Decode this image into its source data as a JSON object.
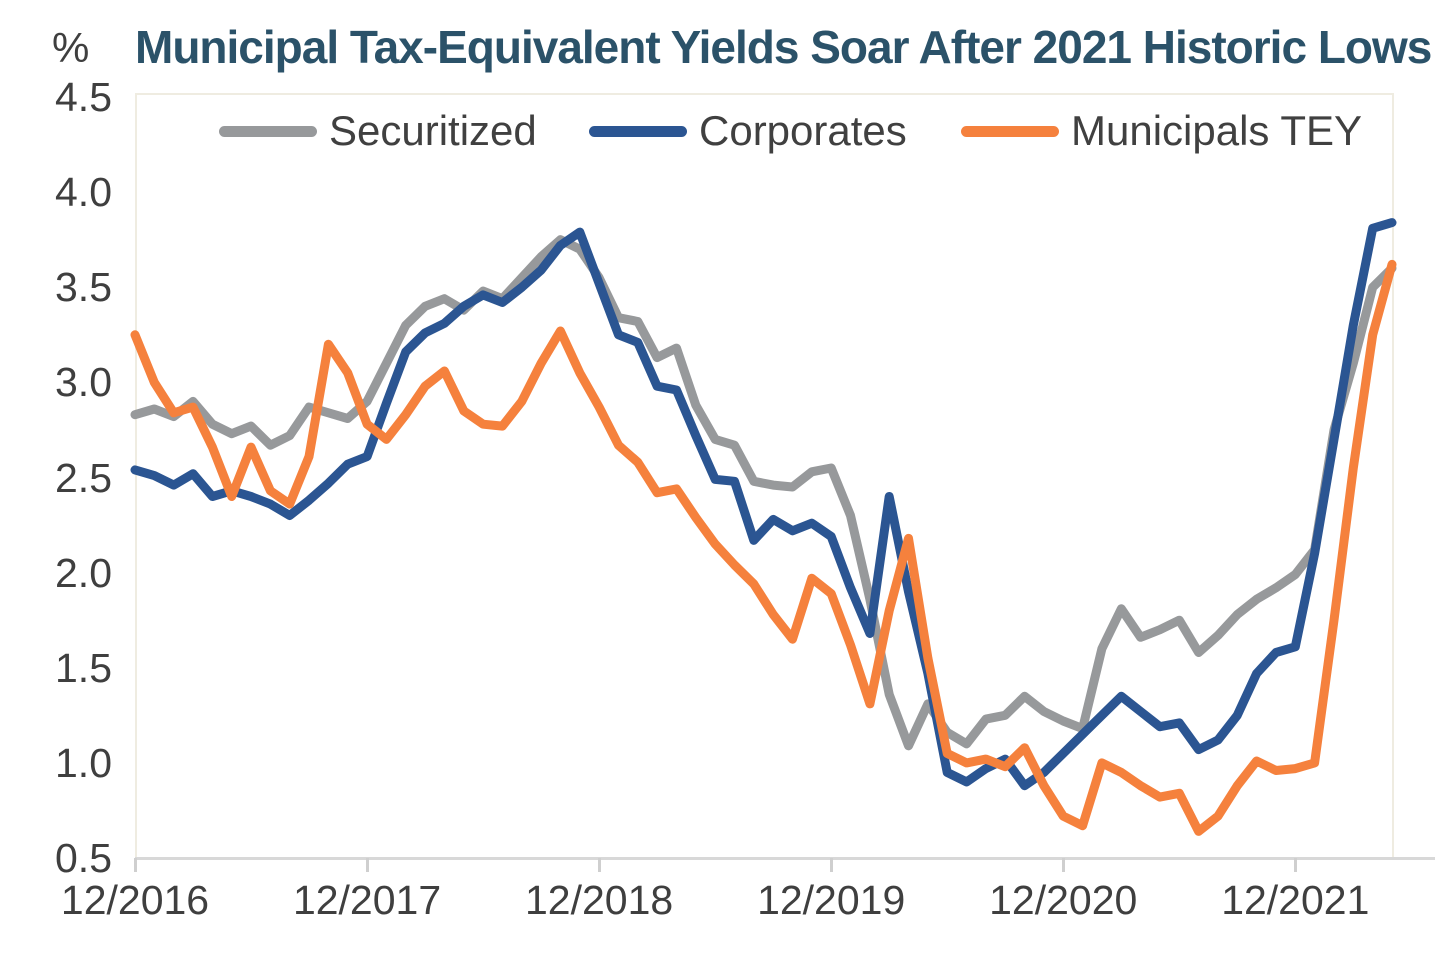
{
  "percent_label": "%",
  "title": "Municipal Tax-Equivalent Yields Soar After 2021 Historic Lows",
  "legend": [
    {
      "label": "Securitized",
      "color": "#97999B"
    },
    {
      "label": "Corporates",
      "color": "#2B5592"
    },
    {
      "label": "Municipals TEY",
      "color": "#F5813D"
    }
  ],
  "colors": {
    "title": "#2B5269",
    "axis_text": "#3F3F3F",
    "axis_line": "#D8D8D8",
    "plot_border": "#EFECE1",
    "securitized": "#97999B",
    "corporates": "#2B5592",
    "municipals_tey": "#F5813D"
  },
  "chart_data": {
    "type": "line",
    "title": "Municipal Tax-Equivalent Yields Soar After 2021 Historic Lows",
    "xlabel": "",
    "ylabel": "%",
    "x_unit": "month",
    "x_start": "12/2016",
    "x_end": "05/2022",
    "ylim": [
      0.5,
      4.5
    ],
    "grid": false,
    "legend_position": "top-inside",
    "y_tick_labels": [
      "4.5",
      "4.0",
      "3.5",
      "3.0",
      "2.5",
      "2.0",
      "1.5",
      "1.0",
      "0.5"
    ],
    "x_tick_labels": [
      "12/2016",
      "12/2017",
      "12/2018",
      "12/2019",
      "12/2020",
      "12/2021"
    ],
    "x_tick_month_index": [
      0,
      12,
      24,
      36,
      48,
      60
    ],
    "series": [
      {
        "name": "Securitized",
        "color": "#97999B",
        "values": [
          2.83,
          2.86,
          2.82,
          2.9,
          2.78,
          2.73,
          2.77,
          2.67,
          2.72,
          2.87,
          2.84,
          2.81,
          2.9,
          3.1,
          3.3,
          3.4,
          3.44,
          3.38,
          3.48,
          3.44,
          3.55,
          3.66,
          3.75,
          3.7,
          3.55,
          3.34,
          3.32,
          3.13,
          3.18,
          2.88,
          2.7,
          2.67,
          2.48,
          2.46,
          2.45,
          2.53,
          2.55,
          2.3,
          1.86,
          1.36,
          1.09,
          1.31,
          1.16,
          1.1,
          1.23,
          1.25,
          1.35,
          1.27,
          1.22,
          1.18,
          1.6,
          1.81,
          1.66,
          1.7,
          1.75,
          1.58,
          1.67,
          1.78,
          1.86,
          1.92,
          1.99,
          2.12,
          2.75,
          3.1,
          3.5,
          3.6
        ]
      },
      {
        "name": "Corporates",
        "color": "#2B5592",
        "values": [
          2.54,
          2.51,
          2.46,
          2.52,
          2.4,
          2.43,
          2.4,
          2.36,
          2.3,
          2.38,
          2.47,
          2.57,
          2.61,
          2.89,
          3.16,
          3.26,
          3.31,
          3.4,
          3.46,
          3.42,
          3.5,
          3.59,
          3.72,
          3.79,
          3.52,
          3.25,
          3.21,
          2.98,
          2.96,
          2.72,
          2.49,
          2.48,
          2.17,
          2.28,
          2.22,
          2.26,
          2.19,
          1.92,
          1.68,
          2.4,
          1.9,
          1.47,
          0.95,
          0.9,
          0.97,
          1.02,
          0.88,
          0.95,
          1.05,
          1.15,
          1.25,
          1.35,
          1.27,
          1.19,
          1.21,
          1.07,
          1.12,
          1.25,
          1.47,
          1.58,
          1.61,
          2.1,
          2.7,
          3.3,
          3.81,
          3.84
        ]
      },
      {
        "name": "Municipals TEY",
        "color": "#F5813D",
        "values": [
          3.25,
          3.0,
          2.84,
          2.87,
          2.66,
          2.4,
          2.66,
          2.43,
          2.36,
          2.61,
          3.2,
          3.05,
          2.78,
          2.7,
          2.83,
          2.98,
          3.06,
          2.85,
          2.78,
          2.77,
          2.9,
          3.1,
          3.27,
          3.05,
          2.87,
          2.67,
          2.58,
          2.42,
          2.44,
          2.29,
          2.15,
          2.04,
          1.94,
          1.78,
          1.65,
          1.97,
          1.89,
          1.62,
          1.31,
          1.8,
          2.18,
          1.55,
          1.05,
          1.0,
          1.02,
          0.98,
          1.08,
          0.88,
          0.72,
          0.67,
          1.0,
          0.95,
          0.88,
          0.82,
          0.84,
          0.64,
          0.72,
          0.88,
          1.01,
          0.96,
          0.97,
          1.0,
          1.75,
          2.55,
          3.25,
          3.62
        ]
      }
    ]
  }
}
